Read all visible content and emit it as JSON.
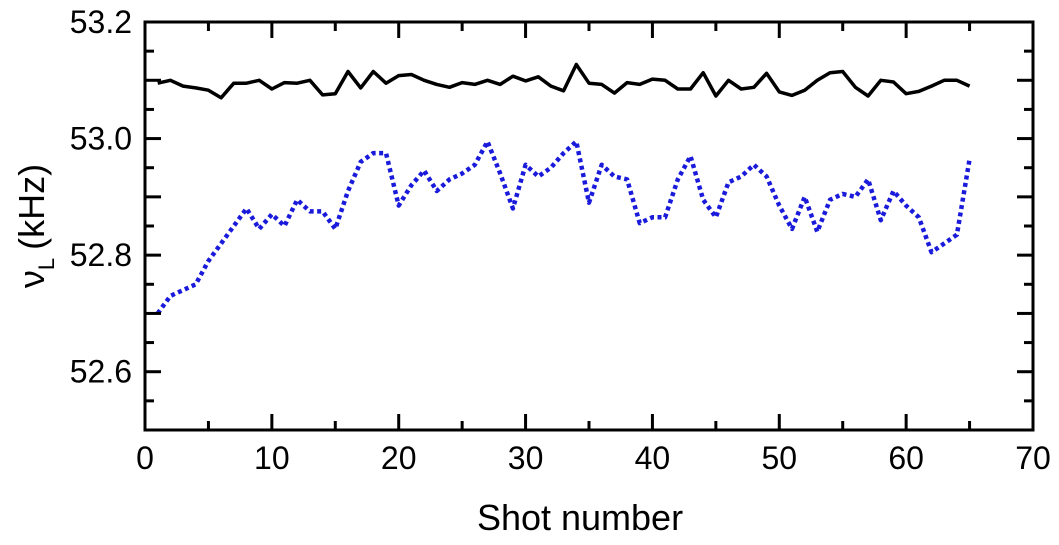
{
  "chart_data": {
    "type": "line",
    "xlabel": "Shot number",
    "ylabel": {
      "symbol": "ν",
      "subscript": "L",
      "unit": "(kHz)"
    },
    "xlim": [
      0,
      70
    ],
    "ylim": [
      52.5,
      53.2
    ],
    "xticks": [
      0,
      10,
      20,
      30,
      40,
      50,
      60,
      70
    ],
    "yticks": [
      52.6,
      52.8,
      53.0,
      53.2
    ],
    "ytick_labels": [
      "52.6",
      "52.8",
      "53.0",
      "53.2"
    ],
    "grid": false,
    "x": [
      1,
      2,
      3,
      4,
      5,
      6,
      7,
      8,
      9,
      10,
      11,
      12,
      13,
      14,
      15,
      16,
      17,
      18,
      19,
      20,
      21,
      22,
      23,
      24,
      25,
      26,
      27,
      28,
      29,
      30,
      31,
      32,
      33,
      34,
      35,
      36,
      37,
      38,
      39,
      40,
      41,
      42,
      43,
      44,
      45,
      46,
      47,
      48,
      49,
      50,
      51,
      52,
      53,
      54,
      55,
      56,
      57,
      58,
      59,
      60,
      61,
      62,
      63,
      64,
      65
    ],
    "series": [
      {
        "color": "#000000",
        "dash": "solid",
        "values": [
          53.095,
          53.1,
          53.09,
          53.087,
          53.083,
          53.07,
          53.095,
          53.095,
          53.1,
          53.085,
          53.096,
          53.095,
          53.1,
          53.075,
          53.077,
          53.115,
          53.087,
          53.115,
          53.095,
          53.108,
          53.11,
          53.1,
          53.093,
          53.088,
          53.096,
          53.093,
          53.1,
          53.093,
          53.107,
          53.099,
          53.106,
          53.09,
          53.082,
          53.127,
          53.095,
          53.093,
          53.078,
          53.096,
          53.093,
          53.102,
          53.1,
          53.085,
          53.085,
          53.113,
          53.073,
          53.1,
          53.085,
          53.088,
          53.112,
          53.08,
          53.074,
          53.083,
          53.1,
          53.113,
          53.115,
          53.088,
          53.073,
          53.1,
          53.097,
          53.077,
          53.081,
          53.09,
          53.1,
          53.1,
          53.09
        ]
      },
      {
        "color": "#1a1adb",
        "dash": "dotted",
        "values": [
          52.7,
          52.73,
          52.74,
          52.75,
          52.79,
          52.82,
          52.85,
          52.88,
          52.845,
          52.87,
          52.85,
          52.895,
          52.875,
          52.875,
          52.845,
          52.91,
          52.96,
          52.975,
          52.975,
          52.885,
          52.92,
          52.945,
          52.91,
          52.93,
          52.94,
          52.955,
          52.995,
          52.94,
          52.88,
          52.955,
          52.935,
          52.95,
          52.975,
          52.995,
          52.89,
          52.955,
          52.935,
          52.93,
          52.855,
          52.865,
          52.865,
          52.93,
          52.97,
          52.895,
          52.865,
          52.925,
          52.935,
          52.955,
          52.935,
          52.885,
          52.845,
          52.9,
          52.84,
          52.895,
          52.905,
          52.9,
          52.93,
          52.86,
          52.91,
          52.885,
          52.865,
          52.805,
          52.82,
          52.835,
          52.965
        ]
      }
    ]
  }
}
